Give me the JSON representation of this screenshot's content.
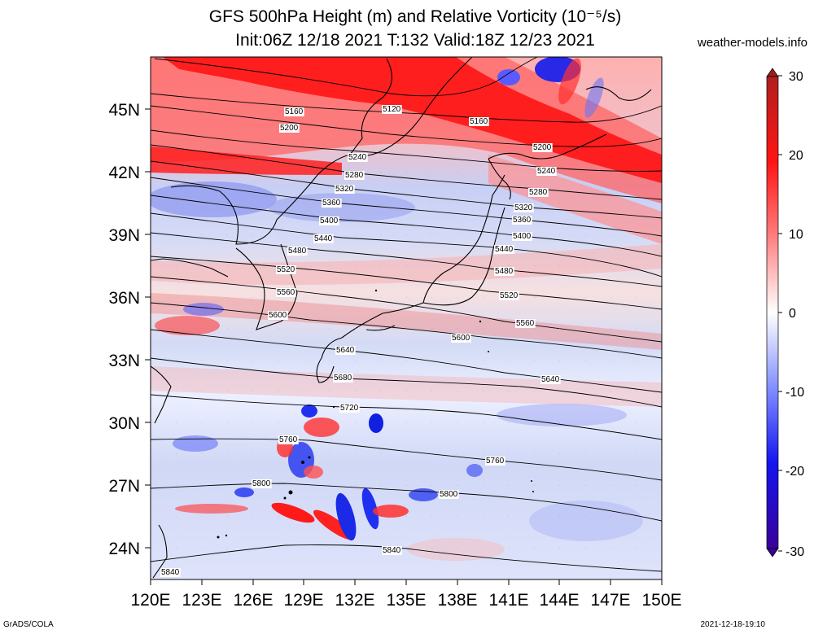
{
  "header": {
    "title_line1": "GFS 500hPa Height (m) and Relative Vorticity (10⁻⁵/s)",
    "title_line2": "Init:06Z 12/18 2021 T:132 Valid:18Z 12/23 2021",
    "site": "weather-models.info"
  },
  "map": {
    "lat_labels": [
      "45N",
      "42N",
      "39N",
      "36N",
      "33N",
      "30N",
      "27N",
      "24N"
    ],
    "lon_labels": [
      "120E",
      "123E",
      "126E",
      "129E",
      "132E",
      "135E",
      "138E",
      "141E",
      "144E",
      "147E",
      "150E"
    ],
    "contour_labels": [
      "5120",
      "5160",
      "5160",
      "5200",
      "5200",
      "5240",
      "5240",
      "5280",
      "5280",
      "5320",
      "5320",
      "5360",
      "5360",
      "5400",
      "5400",
      "5440",
      "5440",
      "5480",
      "5480",
      "5520",
      "5520",
      "5560",
      "5560",
      "5600",
      "5600",
      "5640",
      "5640",
      "5680",
      "5720",
      "5760",
      "5760",
      "5800",
      "5800",
      "5840",
      "5840"
    ]
  },
  "colorbar": {
    "tick_labels": [
      "30",
      "20",
      "10",
      "0",
      "-10",
      "-20",
      "-30"
    ],
    "colors": {
      "max": "#9c1c1c",
      "pos": "#ff1010",
      "zero": "#ffffff",
      "neg": "#1010ff",
      "min": "#3a0098"
    }
  },
  "footer": {
    "left": "GrADS/COLA",
    "right": "2021-12-18-19:10"
  }
}
